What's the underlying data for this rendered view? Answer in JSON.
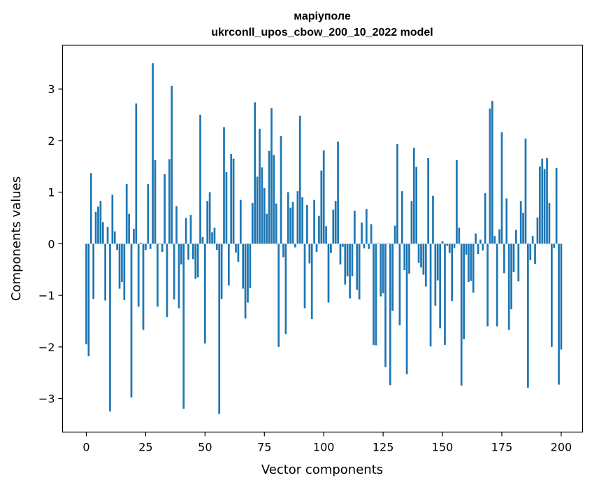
{
  "chart_data": {
    "type": "bar",
    "title": "маріуполе",
    "subtitle": "ukrconll_upos_cbow_200_10_2022 model",
    "xlabel": "Vector components",
    "ylabel": "Components values",
    "xlim": [
      -10,
      209
    ],
    "ylim": [
      -3.65,
      3.85
    ],
    "xticks": [
      0,
      25,
      50,
      75,
      100,
      125,
      150,
      175,
      200
    ],
    "yticks": [
      -3,
      -2,
      -1,
      0,
      1,
      2,
      3
    ],
    "ytick_labels": [
      "−3",
      "−2",
      "−1",
      "0",
      "1",
      "2",
      "3"
    ],
    "bar_color": "#1f77b4",
    "grid": false,
    "legend": "none",
    "values": [
      -1.95,
      -2.18,
      1.37,
      -1.07,
      0.62,
      0.72,
      0.83,
      0.42,
      -1.1,
      0.33,
      -3.25,
      0.95,
      0.24,
      -0.12,
      -0.87,
      -0.74,
      -1.09,
      1.16,
      0.58,
      -2.98,
      0.29,
      2.72,
      -1.22,
      0.02,
      -1.67,
      -0.12,
      1.16,
      -0.1,
      3.5,
      1.62,
      -1.22,
      -0.01,
      -0.16,
      1.35,
      -1.42,
      1.64,
      3.06,
      -1.08,
      0.73,
      -1.25,
      -0.4,
      -3.2,
      0.5,
      -0.31,
      0.56,
      -0.3,
      -0.68,
      -0.65,
      2.5,
      0.13,
      -1.93,
      0.83,
      1.0,
      0.22,
      0.31,
      -0.12,
      -3.3,
      -1.07,
      2.26,
      1.39,
      -0.81,
      1.74,
      1.65,
      -0.17,
      -0.35,
      0.85,
      -0.87,
      -1.45,
      -1.14,
      -0.86,
      0.79,
      2.74,
      1.3,
      2.23,
      1.48,
      1.08,
      0.58,
      1.8,
      2.63,
      1.72,
      0.78,
      -2.0,
      2.09,
      -0.26,
      -1.75,
      1.0,
      0.7,
      0.81,
      -0.07,
      1.02,
      2.48,
      0.9,
      -1.25,
      0.75,
      -0.38,
      -1.46,
      0.85,
      -0.16,
      0.54,
      1.42,
      1.81,
      0.34,
      -1.14,
      -0.18,
      0.66,
      0.83,
      1.98,
      -0.4,
      -0.06,
      -0.79,
      -0.63,
      -1.06,
      -0.63,
      0.64,
      -0.89,
      -1.08,
      0.41,
      -0.09,
      0.67,
      -0.1,
      0.38,
      -1.96,
      -1.97,
      0.01,
      -1.02,
      -0.96,
      -2.39,
      0.0,
      -2.74,
      -1.3,
      0.35,
      1.93,
      -1.58,
      1.02,
      -0.51,
      -2.53,
      -0.58,
      0.83,
      1.86,
      1.49,
      -0.37,
      -0.46,
      -0.6,
      -0.83,
      1.66,
      -1.99,
      0.93,
      -1.2,
      -0.71,
      -1.64,
      0.05,
      -1.96,
      -0.04,
      -0.18,
      -1.11,
      -0.08,
      1.62,
      0.31,
      -2.75,
      -1.85,
      -0.21,
      -0.74,
      -0.72,
      -0.95,
      0.2,
      -0.2,
      0.08,
      -0.13,
      0.98,
      -1.6,
      2.62,
      2.77,
      0.15,
      -1.6,
      0.28,
      2.16,
      -0.57,
      0.88,
      -1.67,
      -1.27,
      -0.55,
      0.27,
      -0.73,
      0.83,
      0.6,
      2.04,
      -2.79,
      -0.32,
      0.15,
      -0.39,
      0.51,
      1.5,
      1.65,
      1.45,
      1.66,
      0.79,
      -2.0,
      -0.08,
      1.47,
      -2.73,
      -2.05
    ]
  }
}
